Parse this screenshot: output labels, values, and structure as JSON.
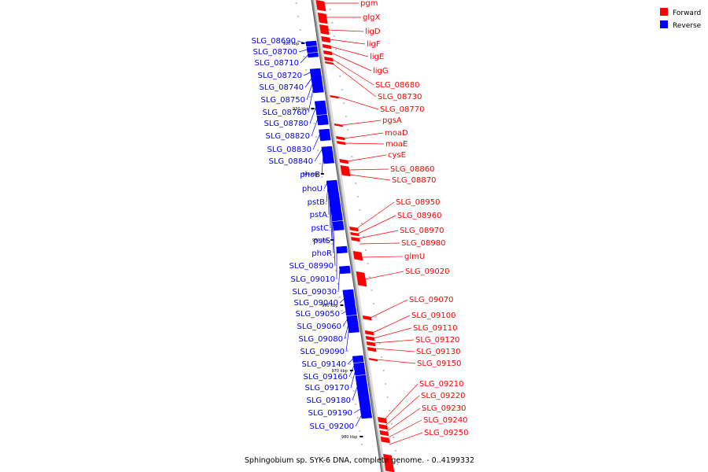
{
  "caption": "Sphingobium sp. SYK-6 DNA, complete genome. - 0..4199332",
  "legend": [
    {
      "label": "Forward",
      "color": "#ff0000"
    },
    {
      "label": "Reverse",
      "color": "#0000ff"
    }
  ],
  "colors": {
    "forward": "#ff0000",
    "reverse": "#0000ff",
    "axis": "#999999"
  },
  "scale_labels": [
    "920 kbp",
    "930 kbp",
    "940 kbp",
    "950 kbp",
    "960 kbp",
    "970 kbp",
    "980 kbp"
  ],
  "forward_genes": [
    "pgm",
    "glgX",
    "ligD",
    "ligF",
    "ligE",
    "ligG",
    "SLG_08680",
    "SLG_08730",
    "SLG_08770",
    "pgsA",
    "moaD",
    "moaE",
    "cysE",
    "SLG_08860",
    "SLG_08870",
    "SLG_08950",
    "SLG_08960",
    "SLG_08970",
    "SLG_08980",
    "glmU",
    "SLG_09020",
    "SLG_09070",
    "SLG_09100",
    "SLG_09110",
    "SLG_09120",
    "SLG_09130",
    "SLG_09150",
    "SLG_09210",
    "SLG_09220",
    "SLG_09230",
    "SLG_09240",
    "SLG_09250"
  ],
  "reverse_genes": [
    "SLG_08690",
    "SLG_08700",
    "SLG_08710",
    "SLG_08720",
    "SLG_08740",
    "SLG_08750",
    "SLG_08760",
    "SLG_08780",
    "SLG_08820",
    "SLG_08830",
    "SLG_08840",
    "phoB",
    "phoU",
    "pstB",
    "pstA",
    "pstC",
    "pstS",
    "phoR",
    "SLG_08990",
    "SLG_09010",
    "SLG_09030",
    "SLG_09040",
    "SLG_09050",
    "SLG_09060",
    "SLG_09080",
    "SLG_09090",
    "SLG_09140",
    "SLG_09160",
    "SLG_09170",
    "SLG_09180",
    "SLG_09190",
    "SLG_09200"
  ]
}
